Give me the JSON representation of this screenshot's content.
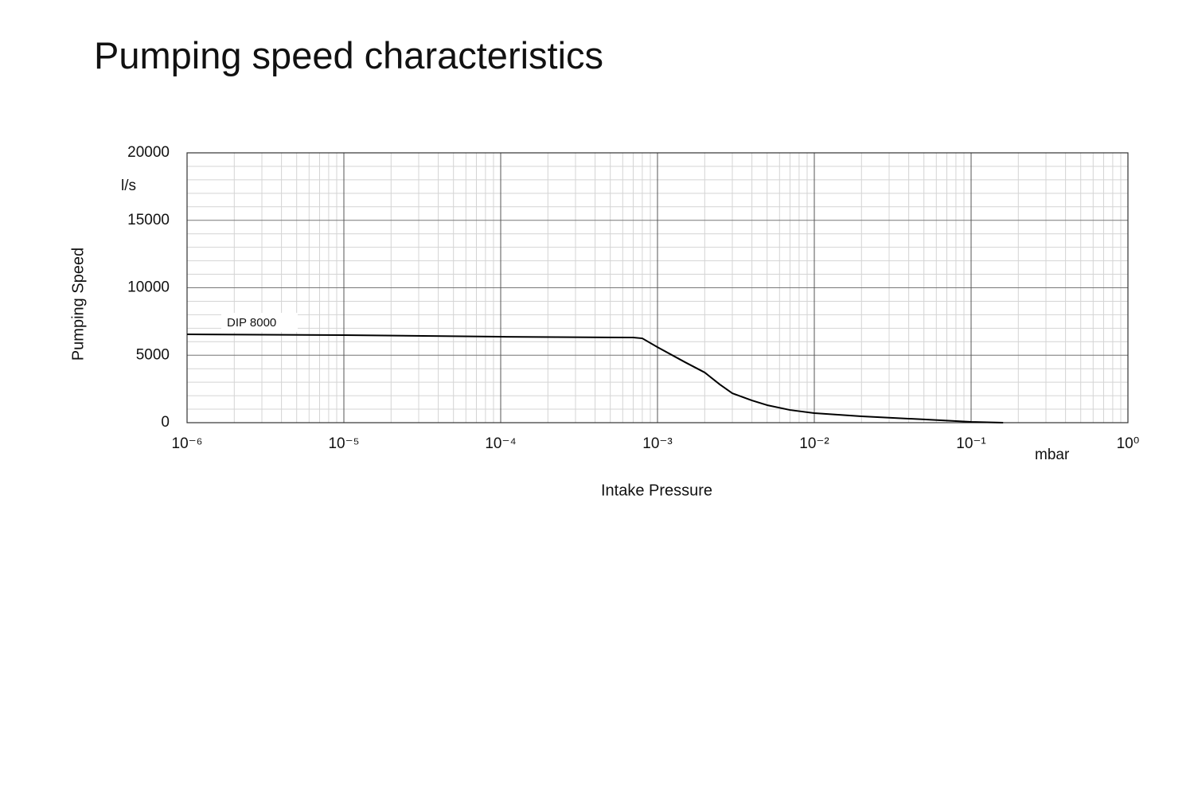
{
  "chart_data": {
    "type": "line",
    "title": "Pumping speed characteristics",
    "x_label": "Intake Pressure",
    "y_label": "Pumping Speed",
    "x_unit": "mbar",
    "y_unit": "l/s",
    "xscale": "log",
    "grid": true,
    "xlim": [
      1e-06,
      1
    ],
    "ylim": [
      0,
      20000
    ],
    "xticks": [
      {
        "value": 1e-06,
        "label": "10⁻⁶"
      },
      {
        "value": 1e-05,
        "label": "10⁻⁵"
      },
      {
        "value": 0.0001,
        "label": "10⁻⁴"
      },
      {
        "value": 0.001,
        "label": "10⁻³"
      },
      {
        "value": 0.01,
        "label": "10⁻²"
      },
      {
        "value": 0.1,
        "label": "10⁻¹"
      },
      {
        "value": 1,
        "label": "10⁰"
      }
    ],
    "yticks": [
      0,
      5000,
      10000,
      15000,
      20000
    ],
    "x_minor_ticks": [
      2e-06,
      3e-06,
      4e-06,
      5e-06,
      6e-06,
      7e-06,
      8e-06,
      9e-06,
      2e-05,
      3e-05,
      4e-05,
      5e-05,
      6e-05,
      7e-05,
      8e-05,
      9e-05,
      0.0002,
      0.0003,
      0.0004,
      0.0005,
      0.0006,
      0.0007,
      0.0008,
      0.0009,
      0.002,
      0.003,
      0.004,
      0.005,
      0.006,
      0.007,
      0.008,
      0.009,
      0.02,
      0.03,
      0.04,
      0.05,
      0.06,
      0.07,
      0.08,
      0.09,
      0.2,
      0.3,
      0.4,
      0.5,
      0.6,
      0.7,
      0.8,
      0.9
    ],
    "y_minor_ticks": [
      1000,
      2000,
      3000,
      4000,
      6000,
      7000,
      8000,
      9000,
      11000,
      12000,
      13000,
      14000,
      16000,
      17000,
      18000,
      19000
    ],
    "series": [
      {
        "name": "DIP 8000",
        "color": "#000000",
        "x": [
          1e-06,
          1e-05,
          0.0001,
          0.0007,
          0.0008,
          0.001,
          0.0015,
          0.002,
          0.0025,
          0.003,
          0.004,
          0.005,
          0.007,
          0.01,
          0.02,
          0.05,
          0.1,
          0.16
        ],
        "values": [
          6550,
          6490,
          6370,
          6310,
          6250,
          5600,
          4480,
          3720,
          2830,
          2180,
          1650,
          1300,
          940,
          710,
          470,
          240,
          60,
          0
        ]
      }
    ]
  }
}
